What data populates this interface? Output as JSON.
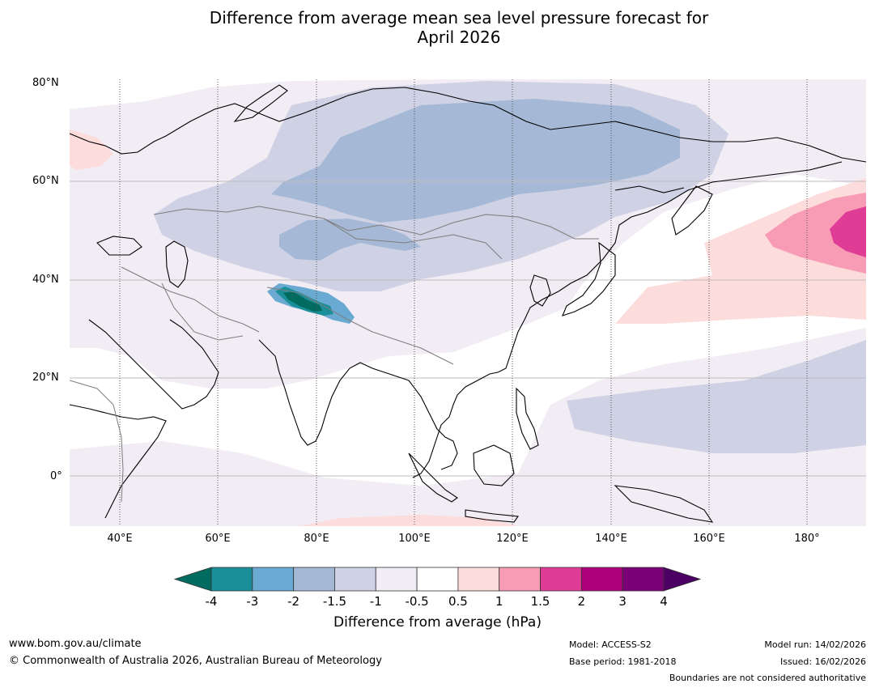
{
  "title_line1": "Difference from average mean sea level pressure forecast for",
  "title_line2": "April 2026",
  "lat_labels": [
    "80°N",
    "60°N",
    "40°N",
    "20°N",
    "0°"
  ],
  "lon_labels": [
    "40°E",
    "60°E",
    "80°E",
    "100°E",
    "120°E",
    "140°E",
    "160°E",
    "180°"
  ],
  "colorbar": {
    "title": "Difference from average (hPa)",
    "ticks": [
      "-4",
      "-3",
      "-2",
      "-1.5",
      "-1",
      "-0.5",
      "0.5",
      "1",
      "1.5",
      "2",
      "3",
      "4"
    ],
    "colors": [
      "#1b8f99",
      "#6aa9d1",
      "#a5b9d6",
      "#cfd1e4",
      "#f2ecf4",
      "#ffffff",
      "#fddcdc",
      "#f89cb5",
      "#de3c95",
      "#ad0079",
      "#7a0077"
    ],
    "under_color": "#006b5e",
    "over_color": "#4c0063"
  },
  "footer": {
    "website": "www.bom.gov.au/climate",
    "copyright": "© Commonwealth of Australia 2026, Australian Bureau of Meteorology",
    "model": "Model: ACCESS-S2",
    "base_period": "Base period: 1981-2018",
    "model_run": "Model run: 14/02/2026",
    "issued": "Issued: 16/02/2026",
    "boundaries": "Boundaries are not considered authoritative"
  }
}
